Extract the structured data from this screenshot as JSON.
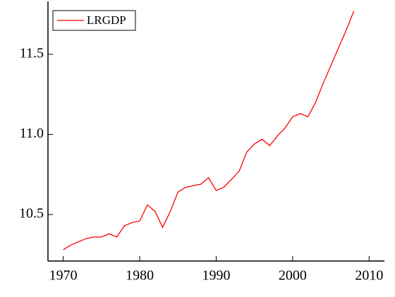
{
  "chart_data": {
    "type": "line",
    "x": [
      1970,
      1971,
      1972,
      1973,
      1974,
      1975,
      1976,
      1977,
      1978,
      1979,
      1980,
      1981,
      1982,
      1983,
      1984,
      1985,
      1986,
      1987,
      1988,
      1989,
      1990,
      1991,
      1992,
      1993,
      1994,
      1995,
      1996,
      1997,
      1998,
      1999,
      2000,
      2001,
      2002,
      2003,
      2004,
      2005,
      2006,
      2007,
      2008
    ],
    "series": [
      {
        "name": "LRGDP",
        "color": "#ff0000",
        "values": [
          10.28,
          10.31,
          10.33,
          10.35,
          10.36,
          10.36,
          10.38,
          10.36,
          10.43,
          10.45,
          10.46,
          10.56,
          10.52,
          10.42,
          10.52,
          10.64,
          10.67,
          10.68,
          10.69,
          10.73,
          10.65,
          10.67,
          10.72,
          10.77,
          10.89,
          10.94,
          10.97,
          10.93,
          10.99,
          11.04,
          11.11,
          11.13,
          11.11,
          11.2,
          11.32,
          11.43,
          11.54,
          11.65,
          11.77
        ]
      }
    ],
    "xlim": [
      1968,
      2012
    ],
    "xticks": [
      1970,
      1980,
      1990,
      2000,
      2010
    ],
    "ylim": [
      10.21,
      11.83
    ],
    "yticks": [
      {
        "value": 10.5,
        "label": "10.5"
      },
      {
        "value": 11.0,
        "label": "11.0"
      },
      {
        "value": 11.5,
        "label": "11.5"
      }
    ],
    "legend": "upper left"
  }
}
